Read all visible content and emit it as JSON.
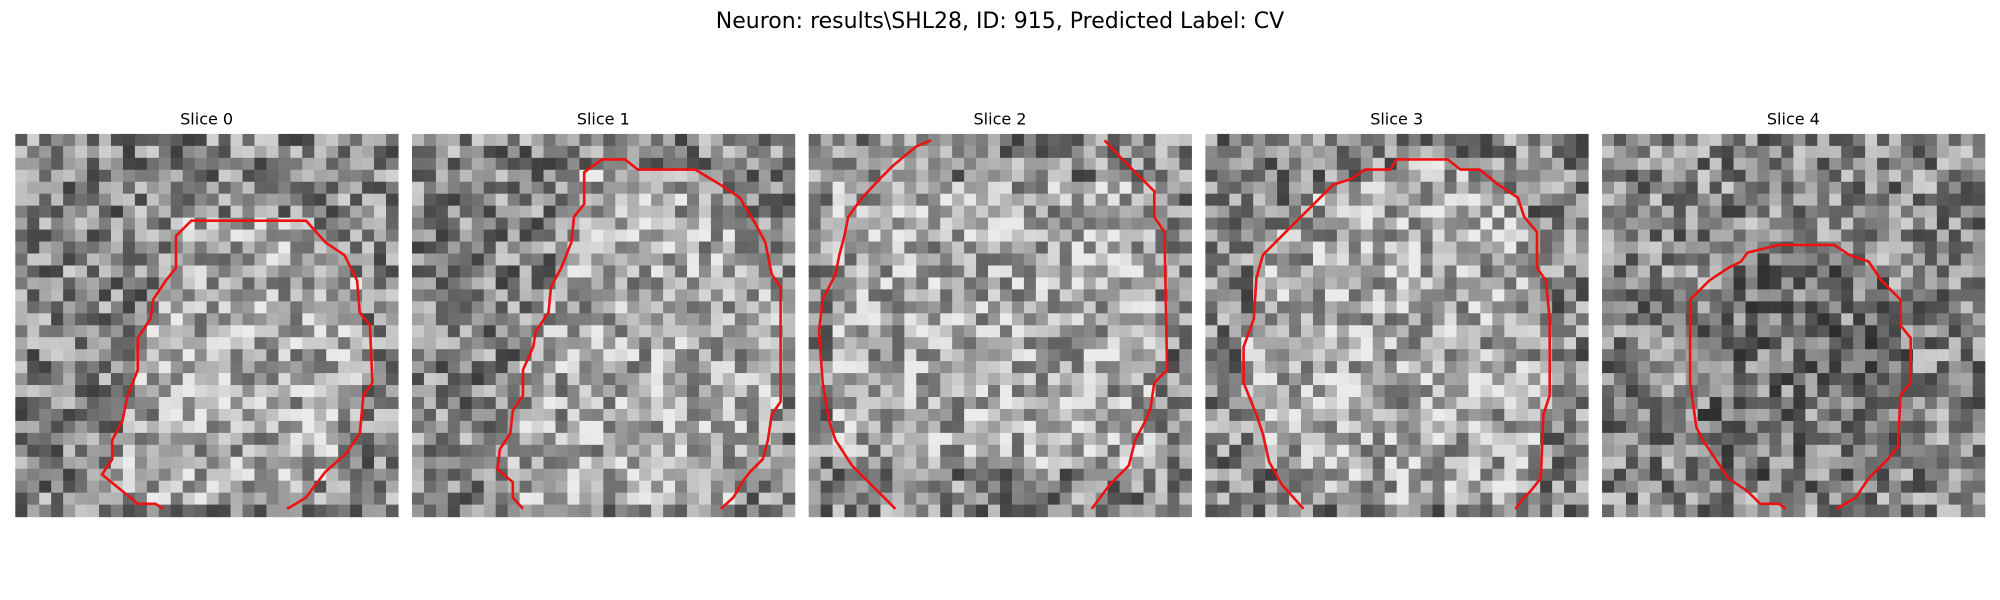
{
  "title": "Neuron: results\\SHL28, ID: 915, Predicted Label: CV",
  "panels": [
    {
      "title": "Slice 0"
    },
    {
      "title": "Slice 1"
    },
    {
      "title": "Slice 2"
    },
    {
      "title": "Slice 3"
    },
    {
      "title": "Slice 4"
    }
  ]
}
